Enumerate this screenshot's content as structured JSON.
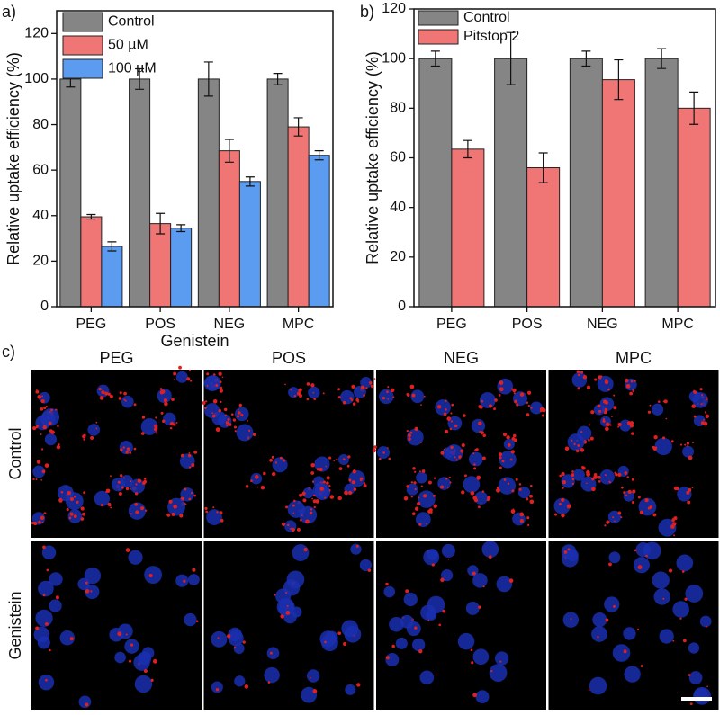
{
  "chart_data": [
    {
      "type": "bar",
      "panel_label": "a)",
      "ylabel": "Relative uptake efficiency (%)",
      "xlabel": "Genistein",
      "categories": [
        "PEG",
        "POS",
        "NEG",
        "MPC"
      ],
      "series": [
        {
          "name": "Control",
          "color": "#858585",
          "values": [
            100,
            100,
            100,
            100
          ],
          "errors": [
            3.5,
            4.5,
            7.5,
            2.5
          ]
        },
        {
          "name": "50 µM",
          "color": "#f07575",
          "values": [
            39.5,
            36.5,
            68.5,
            79
          ],
          "errors": [
            1,
            4.5,
            5,
            4
          ]
        },
        {
          "name": "100 µM",
          "color": "#5b9cf0",
          "values": [
            26.5,
            34.5,
            55,
            66.5
          ],
          "errors": [
            2,
            1.5,
            2,
            2
          ]
        }
      ],
      "ylim": [
        0,
        130
      ],
      "yticks": [
        0,
        20,
        40,
        60,
        80,
        100,
        120
      ],
      "legend": "upper left"
    },
    {
      "type": "bar",
      "panel_label": "b)",
      "ylabel": "Relative uptake efficiency (%)",
      "categories": [
        "PEG",
        "POS",
        "NEG",
        "MPC"
      ],
      "series": [
        {
          "name": "Control",
          "color": "#858585",
          "values": [
            100,
            100,
            100,
            100
          ],
          "errors": [
            3,
            10.5,
            3,
            4
          ]
        },
        {
          "name": "Pitstop 2",
          "color": "#f07575",
          "values": [
            63.5,
            56,
            91.5,
            80
          ],
          "errors": [
            3.5,
            6,
            8,
            6.5
          ]
        }
      ],
      "ylim": [
        0,
        120
      ],
      "yticks": [
        0,
        20,
        40,
        60,
        80,
        100,
        120
      ],
      "legend": "upper left"
    }
  ],
  "panel_c": {
    "panel_label": "c)",
    "columns": [
      "PEG",
      "POS",
      "NEG",
      "MPC"
    ],
    "rows": [
      "Control",
      "Genistein"
    ]
  }
}
